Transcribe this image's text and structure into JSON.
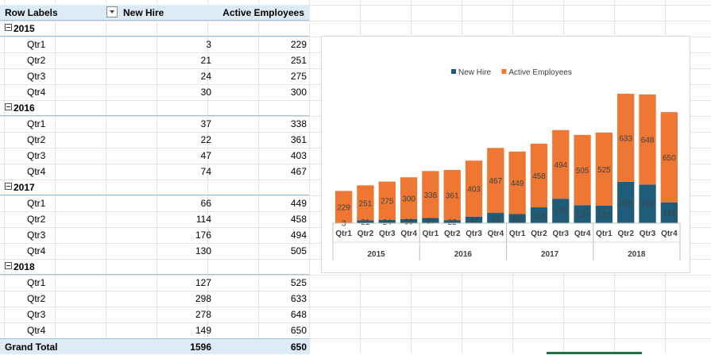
{
  "pivot": {
    "header": {
      "row_labels": "Row Labels",
      "new_hire": "New Hire",
      "active_employees": "Active Employees"
    },
    "years": [
      {
        "year": "2015",
        "quarters": [
          {
            "label": "Qtr1",
            "new_hire": "3",
            "active": "229"
          },
          {
            "label": "Qtr2",
            "new_hire": "21",
            "active": "251"
          },
          {
            "label": "Qtr3",
            "new_hire": "24",
            "active": "275"
          },
          {
            "label": "Qtr4",
            "new_hire": "30",
            "active": "300"
          }
        ]
      },
      {
        "year": "2016",
        "quarters": [
          {
            "label": "Qtr1",
            "new_hire": "37",
            "active": "338"
          },
          {
            "label": "Qtr2",
            "new_hire": "22",
            "active": "361"
          },
          {
            "label": "Qtr3",
            "new_hire": "47",
            "active": "403"
          },
          {
            "label": "Qtr4",
            "new_hire": "74",
            "active": "467"
          }
        ]
      },
      {
        "year": "2017",
        "quarters": [
          {
            "label": "Qtr1",
            "new_hire": "66",
            "active": "449"
          },
          {
            "label": "Qtr2",
            "new_hire": "114",
            "active": "458"
          },
          {
            "label": "Qtr3",
            "new_hire": "176",
            "active": "494"
          },
          {
            "label": "Qtr4",
            "new_hire": "130",
            "active": "505"
          }
        ]
      },
      {
        "year": "2018",
        "quarters": [
          {
            "label": "Qtr1",
            "new_hire": "127",
            "active": "525"
          },
          {
            "label": "Qtr2",
            "new_hire": "298",
            "active": "633"
          },
          {
            "label": "Qtr3",
            "new_hire": "278",
            "active": "648"
          },
          {
            "label": "Qtr4",
            "new_hire": "149",
            "active": "650"
          }
        ]
      }
    ],
    "total": {
      "label": "Grand Total",
      "new_hire": "1596",
      "active": "650"
    }
  },
  "colors": {
    "new_hire": "#1f5c7a",
    "active_employees": "#ee7733",
    "header_fill": "#ddebf7",
    "sheet_tab_green": "#217346"
  },
  "chart_data": {
    "type": "bar",
    "stacked": true,
    "categories": [
      "Qtr1",
      "Qtr2",
      "Qtr3",
      "Qtr4",
      "Qtr1",
      "Qtr2",
      "Qtr3",
      "Qtr4",
      "Qtr1",
      "Qtr2",
      "Qtr3",
      "Qtr4",
      "Qtr1",
      "Qtr2",
      "Qtr3",
      "Qtr4"
    ],
    "groups": [
      {
        "label": "2015",
        "count": 4
      },
      {
        "label": "2016",
        "count": 4
      },
      {
        "label": "2017",
        "count": 4
      },
      {
        "label": "2018",
        "count": 4
      }
    ],
    "series": [
      {
        "name": "New Hire",
        "values": [
          3,
          21,
          24,
          30,
          37,
          22,
          47,
          74,
          66,
          114,
          176,
          130,
          127,
          298,
          278,
          149
        ]
      },
      {
        "name": "Active Employees",
        "values": [
          229,
          251,
          275,
          300,
          338,
          361,
          403,
          467,
          449,
          458,
          494,
          505,
          525,
          633,
          648,
          650
        ]
      }
    ],
    "legend": "top",
    "grid": false,
    "ylim": [
      0,
      1000
    ]
  }
}
